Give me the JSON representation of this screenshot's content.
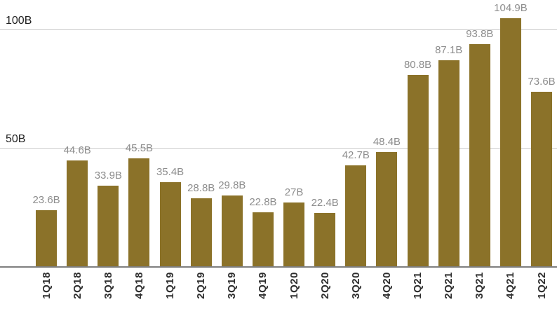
{
  "chart_data": {
    "type": "bar",
    "title": "",
    "xlabel": "",
    "ylabel": "",
    "categories": [
      "1Q18",
      "2Q18",
      "3Q18",
      "4Q18",
      "1Q19",
      "2Q19",
      "3Q19",
      "4Q19",
      "1Q20",
      "2Q20",
      "3Q20",
      "4Q20",
      "1Q21",
      "2Q21",
      "3Q21",
      "4Q21",
      "1Q22"
    ],
    "values": [
      23.6,
      44.6,
      33.9,
      45.5,
      35.4,
      28.8,
      29.8,
      22.8,
      27,
      22.4,
      42.7,
      48.4,
      80.8,
      87.1,
      93.8,
      104.9,
      73.6
    ],
    "value_labels": [
      "23.6B",
      "44.6B",
      "33.9B",
      "45.5B",
      "35.4B",
      "28.8B",
      "29.8B",
      "22.8B",
      "27B",
      "22.4B",
      "42.7B",
      "48.4B",
      "80.8B",
      "87.1B",
      "93.8B",
      "104.9B",
      "73.6B"
    ],
    "y_ticks": [
      {
        "value": 50,
        "label": "50B"
      },
      {
        "value": 100,
        "label": "100B"
      }
    ],
    "ylim": [
      0,
      112.5
    ],
    "grid": true,
    "legend": null,
    "colors": {
      "bar": "#8b7229",
      "value_label": "#8d8d8d",
      "x_tick_label": "#2e2e2e",
      "y_tick_label": "#1f1f1f",
      "gridline": "#cccccc",
      "baseline": "#7f7f7f",
      "background": "#ffffff"
    }
  }
}
